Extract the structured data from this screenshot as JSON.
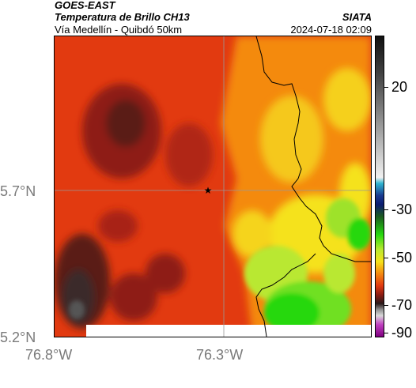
{
  "header": {
    "satellite": "GOES-EAST",
    "product": "Temperatura de Brillo CH13",
    "route": "Vía Medellín - Quibdó 50km",
    "org": "SIATA",
    "timestamp": "2024-07-18 02:09"
  },
  "axes": {
    "x_ticks": [
      "76.8°W",
      "76.3°W"
    ],
    "y_ticks": [
      "5.7°N",
      "5.2°N"
    ]
  },
  "colorbar": {
    "ticks": [
      "20",
      "-30",
      "-50",
      "-70",
      "-90"
    ]
  },
  "map": {
    "marker": "star",
    "colors": {
      "darkest": "#3a2a2a",
      "dark_red": "#8e1c12",
      "red": "#e23a10",
      "orange": "#f48a10",
      "yellow": "#f5e21a",
      "green_yellow": "#b9e830",
      "green": "#25d80e",
      "border": "#000000",
      "grid": "#999999"
    }
  }
}
